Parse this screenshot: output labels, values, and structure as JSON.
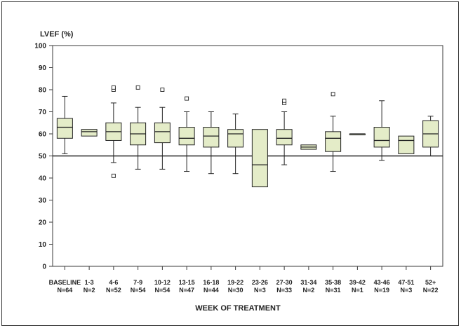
{
  "chart_data": {
    "type": "boxplot",
    "ylabel": "LVEF (%)",
    "xlabel": "WEEK OF TREATMENT",
    "ylim": [
      0,
      100
    ],
    "yticks": [
      0,
      10,
      20,
      30,
      40,
      50,
      60,
      70,
      80,
      90,
      100
    ],
    "reference_line_y": 50,
    "colors": {
      "box_fill": "#e4ecc8",
      "stroke": "#222222",
      "frame": "#3a3a3a"
    },
    "groups": [
      {
        "label": "BASELINE",
        "n": "N=64",
        "whisker_low": 51,
        "q1": 58,
        "median": 63,
        "q3": 67,
        "whisker_high": 77,
        "outliers": []
      },
      {
        "label": "1-3",
        "n": "N=2",
        "whisker_low": 59,
        "q1": 59,
        "median": 61,
        "q3": 62,
        "whisker_high": 62,
        "outliers": []
      },
      {
        "label": "4-6",
        "n": "N=52",
        "whisker_low": 47,
        "q1": 57,
        "median": 61,
        "q3": 65,
        "whisker_high": 74,
        "outliers": [
          41,
          80,
          81
        ]
      },
      {
        "label": "7-9",
        "n": "N=54",
        "whisker_low": 44,
        "q1": 55,
        "median": 60,
        "q3": 65,
        "whisker_high": 72,
        "outliers": [
          81
        ]
      },
      {
        "label": "10-12",
        "n": "N=54",
        "whisker_low": 44,
        "q1": 56,
        "median": 61,
        "q3": 65,
        "whisker_high": 72,
        "outliers": [
          80
        ]
      },
      {
        "label": "13-15",
        "n": "N=47",
        "whisker_low": 43,
        "q1": 55,
        "median": 58,
        "q3": 63,
        "whisker_high": 70,
        "outliers": [
          76
        ]
      },
      {
        "label": "16-18",
        "n": "N=44",
        "whisker_low": 42,
        "q1": 54,
        "median": 59,
        "q3": 63,
        "whisker_high": 70,
        "outliers": []
      },
      {
        "label": "19-22",
        "n": "N=30",
        "whisker_low": 42,
        "q1": 54,
        "median": 60,
        "q3": 62,
        "whisker_high": 69,
        "outliers": []
      },
      {
        "label": "23-26",
        "n": "N=3",
        "whisker_low": 36,
        "q1": 36,
        "median": 46,
        "q3": 62,
        "whisker_high": 62,
        "outliers": []
      },
      {
        "label": "27-30",
        "n": "N=33",
        "whisker_low": 46,
        "q1": 55,
        "median": 58,
        "q3": 62,
        "whisker_high": 70,
        "outliers": [
          74,
          75
        ]
      },
      {
        "label": "31-34",
        "n": "N=2",
        "whisker_low": 53,
        "q1": 53,
        "median": 54,
        "q3": 55,
        "whisker_high": 55,
        "outliers": []
      },
      {
        "label": "35-38",
        "n": "N=31",
        "whisker_low": 43,
        "q1": 52,
        "median": 58,
        "q3": 61,
        "whisker_high": 68,
        "outliers": [
          78
        ]
      },
      {
        "label": "39-42",
        "n": "N=1",
        "whisker_low": 60,
        "q1": 60,
        "median": 60,
        "q3": 60,
        "whisker_high": 60,
        "outliers": []
      },
      {
        "label": "43-46",
        "n": "N=19",
        "whisker_low": 48,
        "q1": 54,
        "median": 57,
        "q3": 63,
        "whisker_high": 75,
        "outliers": []
      },
      {
        "label": "47-51",
        "n": "N=3",
        "whisker_low": 51,
        "q1": 51,
        "median": 57,
        "q3": 59,
        "whisker_high": 59,
        "outliers": []
      },
      {
        "label": "52+",
        "n": "N=22",
        "whisker_low": 50,
        "q1": 54,
        "median": 60,
        "q3": 66,
        "whisker_high": 68,
        "outliers": []
      }
    ]
  }
}
